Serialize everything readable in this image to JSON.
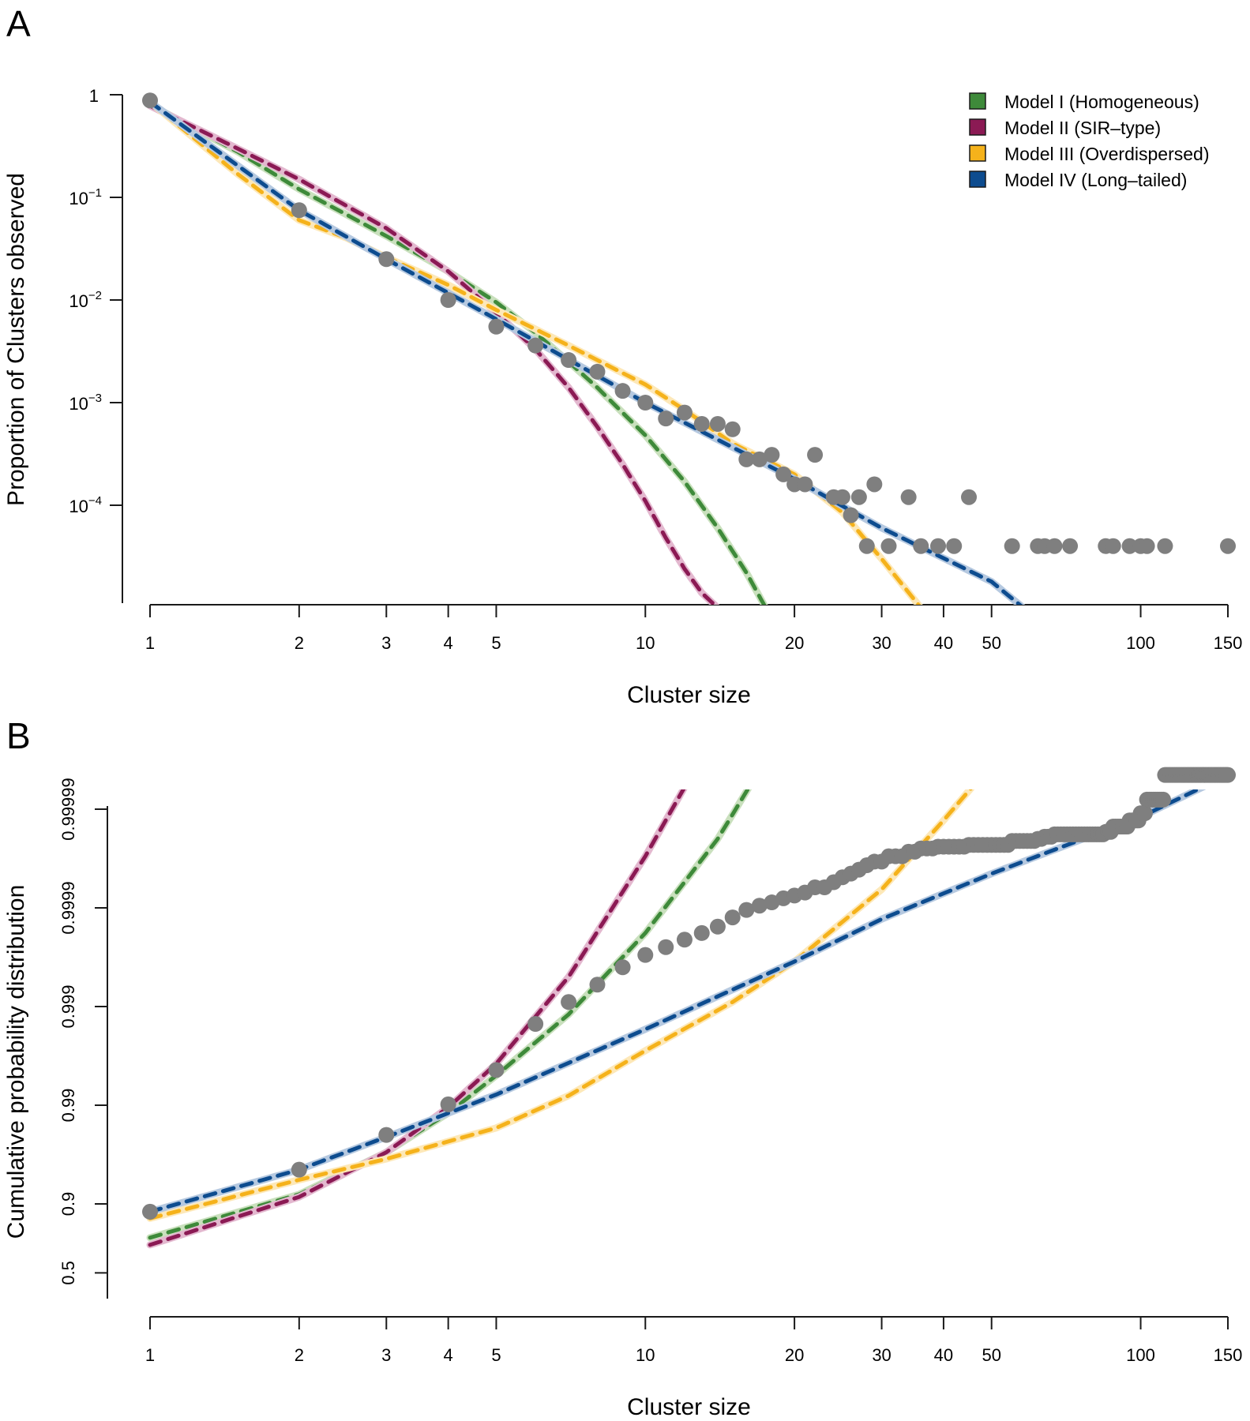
{
  "chart_data": [
    {
      "panel": "A",
      "type": "scatter",
      "title": "",
      "xlabel": "Cluster size",
      "ylabel": "Proportion of Clusters observed",
      "xscale": "log",
      "yscale": "log",
      "xlim": [
        1,
        150
      ],
      "ylim": [
        1e-05,
        1
      ],
      "xticks": [
        1,
        2,
        3,
        4,
        5,
        10,
        20,
        30,
        40,
        50,
        100,
        150
      ],
      "xtick_labels": [
        "1",
        "2",
        "3",
        "4",
        "5",
        "10",
        "20",
        "30",
        "40",
        "50",
        "100",
        "150"
      ],
      "yticks": [
        1,
        0.1,
        0.01,
        0.001,
        0.0001
      ],
      "ytick_labels": [
        {
          "base": "1",
          "exp": ""
        },
        {
          "base": "10",
          "exp": "−1"
        },
        {
          "base": "10",
          "exp": "−2"
        },
        {
          "base": "10",
          "exp": "−3"
        },
        {
          "base": "10",
          "exp": "−4"
        }
      ],
      "grid": false,
      "legend_position": "top-right",
      "observed": {
        "name": "Observed",
        "x": [
          1,
          2,
          3,
          4,
          5,
          6,
          7,
          8,
          9,
          10,
          11,
          12,
          13,
          14,
          15,
          16,
          17,
          18,
          19,
          20,
          21,
          22,
          24,
          25,
          26,
          27,
          28,
          29,
          31,
          34,
          36,
          39,
          42,
          45,
          55,
          62,
          64,
          67,
          72,
          85,
          88,
          95,
          100,
          103,
          112,
          150
        ],
        "y": [
          0.88,
          0.075,
          0.025,
          0.01,
          0.0055,
          0.0036,
          0.0026,
          0.002,
          0.0013,
          0.001,
          0.0007,
          0.0008,
          0.00062,
          0.00062,
          0.00055,
          0.00028,
          0.00028,
          0.00031,
          0.0002,
          0.00016,
          0.00016,
          0.00031,
          0.00012,
          0.00012,
          8e-05,
          0.00012,
          4e-05,
          0.00016,
          4e-05,
          0.00012,
          4e-05,
          4e-05,
          4e-05,
          0.00012,
          4e-05,
          4e-05,
          4e-05,
          4e-05,
          4e-05,
          4e-05,
          4e-05,
          4e-05,
          4e-05,
          4e-05,
          4e-05,
          4e-05
        ]
      },
      "series": [
        {
          "name": "Model I (Homogeneous)",
          "color": "#3e8a3a",
          "halo": "#c9e0bd",
          "x": [
            1,
            1.5,
            2,
            3,
            4,
            5,
            6,
            7,
            8,
            10,
            12,
            14,
            16,
            17.5
          ],
          "y": [
            0.8,
            0.28,
            0.12,
            0.042,
            0.019,
            0.0095,
            0.0048,
            0.0025,
            0.0014,
            0.00048,
            0.00017,
            6e-05,
            2.2e-05,
            1e-05
          ]
        },
        {
          "name": "Model II (SIR-type)",
          "color": "#8b1a54",
          "halo": "#e3b8cf",
          "x": [
            1,
            1.5,
            2,
            3,
            4,
            5,
            6,
            7,
            8,
            9,
            10,
            11,
            12,
            13,
            14
          ],
          "y": [
            0.78,
            0.3,
            0.15,
            0.05,
            0.019,
            0.0075,
            0.0033,
            0.0014,
            0.00058,
            0.00025,
            0.00011,
            4.8e-05,
            2.4e-05,
            1.4e-05,
            1e-05
          ]
        },
        {
          "name": "Model III (Overdispersed)",
          "color": "#f5b21b",
          "halo": "#fde8b8",
          "x": [
            1,
            1.5,
            2,
            2.5,
            3,
            4,
            5,
            7,
            10,
            12,
            15,
            20,
            25,
            30,
            36
          ],
          "y": [
            0.85,
            0.17,
            0.06,
            0.04,
            0.026,
            0.014,
            0.008,
            0.0036,
            0.0015,
            0.00085,
            0.0004,
            0.0002,
            8.5e-05,
            3e-05,
            1e-05
          ]
        },
        {
          "name": "Model IV (Long-tailed)",
          "color": "#0d4c8f",
          "halo": "#b6c9e0",
          "x": [
            1,
            2,
            3,
            5,
            10,
            20,
            30,
            50,
            58
          ],
          "y": [
            0.85,
            0.075,
            0.025,
            0.0065,
            0.001,
            0.00018,
            6e-05,
            1.8e-05,
            1e-05
          ]
        }
      ]
    },
    {
      "panel": "B",
      "type": "scatter",
      "title": "",
      "xlabel": "Cluster size",
      "ylabel": "Cumulative probability distribution",
      "xscale": "log",
      "yscale": "log-complement (1 − p)",
      "xlim": [
        1,
        150
      ],
      "ylim": [
        0.5,
        0.99999
      ],
      "xticks": [
        1,
        2,
        3,
        4,
        5,
        10,
        20,
        30,
        40,
        50,
        100,
        150
      ],
      "xtick_labels": [
        "1",
        "2",
        "3",
        "4",
        "5",
        "10",
        "20",
        "30",
        "40",
        "50",
        "100",
        "150"
      ],
      "yticks": [
        0.5,
        0.9,
        0.99,
        0.999,
        0.9999,
        0.99999
      ],
      "ytick_labels": [
        "0.5",
        "0.9",
        "0.99",
        "0.999",
        "0.9999",
        "0.99999"
      ],
      "grid": false,
      "observed": {
        "name": "Observed",
        "x": [
          1,
          2,
          3,
          4,
          5,
          6,
          7,
          8,
          9,
          10,
          11,
          12,
          13,
          14,
          15,
          16,
          17,
          18,
          19,
          20,
          21,
          22,
          24,
          25,
          26,
          27,
          28,
          29,
          31,
          34,
          36,
          39,
          42,
          45,
          55,
          62,
          64,
          67,
          72,
          85,
          88,
          95,
          100,
          103,
          112,
          150
        ],
        "y_tail": [
          0.12,
          0.045,
          0.02,
          0.0098,
          0.0044,
          0.0015,
          0.0009,
          0.0006,
          0.0004,
          0.0003,
          0.00025,
          0.00021,
          0.00018,
          0.000155,
          0.000125,
          0.000105,
          9.5e-05,
          8.8e-05,
          8e-05,
          7.5e-05,
          7e-05,
          6.2e-05,
          5.5e-05,
          4.9e-05,
          4.5e-05,
          4.1e-05,
          3.7e-05,
          3.4e-05,
          3e-05,
          2.7e-05,
          2.5e-05,
          2.4e-05,
          2.4e-05,
          2.3e-05,
          2.1e-05,
          2e-05,
          1.9e-05,
          1.8e-05,
          1.8e-05,
          1.7e-05,
          1.5e-05,
          1.3e-05,
          1.1e-05,
          8e-06,
          4.5e-06,
          4.5e-06
        ]
      },
      "series": [
        {
          "name": "Model I (Homogeneous)",
          "color": "#3e8a3a",
          "halo": "#c9e0bd",
          "x": [
            1,
            2,
            3,
            4,
            5,
            7,
            10,
            14,
            17,
            20
          ],
          "y_tail": [
            0.22,
            0.08,
            0.03,
            0.012,
            0.005,
            0.0012,
            0.00018,
            2e-05,
            4e-06,
            1.2e-06
          ]
        },
        {
          "name": "Model II (SIR-type)",
          "color": "#8b1a54",
          "halo": "#e3b8cf",
          "x": [
            1,
            2,
            3,
            4,
            5,
            7,
            10,
            12,
            14.5
          ],
          "y_tail": [
            0.26,
            0.085,
            0.03,
            0.0105,
            0.0038,
            0.0005,
            3e-05,
            6e-06,
            1.1e-06
          ]
        },
        {
          "name": "Model III (Overdispersed)",
          "color": "#f5b21b",
          "halo": "#fde8b8",
          "x": [
            1,
            2,
            3,
            5,
            7,
            10,
            15,
            20,
            30,
            40,
            50,
            58
          ],
          "y_tail": [
            0.14,
            0.057,
            0.035,
            0.017,
            0.008,
            0.0028,
            0.0009,
            0.00035,
            6.5e-05,
            1.3e-05,
            3.5e-06,
            1.1e-06
          ]
        },
        {
          "name": "Model IV (Long-tailed)",
          "color": "#0d4c8f",
          "halo": "#b6c9e0",
          "x": [
            1,
            2,
            3,
            5,
            10,
            20,
            30,
            50,
            100,
            150
          ],
          "y_tail": [
            0.12,
            0.045,
            0.021,
            0.0078,
            0.0017,
            0.00035,
            0.00013,
            4.5e-05,
            1.2e-05,
            4.5e-06
          ]
        }
      ]
    }
  ],
  "panels": {
    "a_label": "A",
    "b_label": "B"
  },
  "legend": [
    {
      "label": "Model I (Homogeneous)",
      "color": "#3e8a3a"
    },
    {
      "label": "Model II (SIR–type)",
      "color": "#8b1a54"
    },
    {
      "label": "Model III (Overdispersed)",
      "color": "#f5b21b"
    },
    {
      "label": "Model IV (Long–tailed)",
      "color": "#0d4c8f"
    }
  ]
}
